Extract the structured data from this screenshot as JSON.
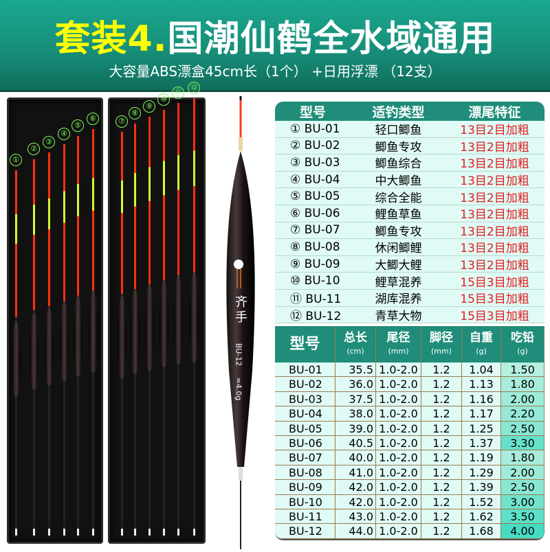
{
  "header": {
    "title_prefix": "套装4.",
    "title_main": "国潮仙鹤全水域通用",
    "subtitle": "大容量ABS漂盒45cm长（1个） +日用浮漂 （12支）"
  },
  "box": {
    "labels": [
      "①",
      "②",
      "③",
      "④",
      "⑤",
      "⑥",
      "⑦",
      "⑧",
      "⑨",
      "⑩",
      "⑪",
      "⑫"
    ]
  },
  "float": {
    "logo": "齐手",
    "model": "BU-12",
    "weight": "≈4.0g"
  },
  "colors": {
    "header": "#1aa88f",
    "title_accent": "#ffff00",
    "tail_feature": "#e02020",
    "table_header": "#1f8d79"
  },
  "table1": {
    "headers": [
      "型号",
      "适钓类型",
      "漂尾特征"
    ],
    "rows": [
      [
        "① BU-01",
        "轻口鲫鱼",
        "13目2目加粗"
      ],
      [
        "② BU-02",
        "鲫鱼专攻",
        "13目2目加粗"
      ],
      [
        "③ BU-03",
        "鲫鱼综合",
        "13目2目加粗"
      ],
      [
        "④ BU-04",
        "中大鲫鱼",
        "13目2目加粗"
      ],
      [
        "⑤ BU-05",
        "综合全能",
        "13目2目加粗"
      ],
      [
        "⑥ BU-06",
        "鲤鱼草鱼",
        "13目2目加粗"
      ],
      [
        "⑦ BU-07",
        "鲫鱼专攻",
        "13目2目加粗"
      ],
      [
        "⑧ BU-08",
        "休闲鲫鲤",
        "13目2目加粗"
      ],
      [
        "⑨ BU-09",
        "大鲫大鲤",
        "13目2目加粗"
      ],
      [
        "⑩ BU-10",
        "鲤草混养",
        "15目3目加粗"
      ],
      [
        "⑪ BU-11",
        "湖库混养",
        "15目3目加粗"
      ],
      [
        "⑫ BU-12",
        "青草大物",
        "15目3目加粗"
      ]
    ]
  },
  "table2": {
    "headers": [
      {
        "label": "型号",
        "unit": ""
      },
      {
        "label": "总长",
        "unit": "(cm)"
      },
      {
        "label": "尾径",
        "unit": "(mm)"
      },
      {
        "label": "脚径",
        "unit": "(mm)"
      },
      {
        "label": "自重",
        "unit": "(g)"
      },
      {
        "label": "吃铅",
        "unit": "(g)"
      }
    ],
    "rows": [
      [
        "BU-01",
        "35.5",
        "1.0-2.0",
        "1.2",
        "1.04",
        "1.50"
      ],
      [
        "BU-02",
        "36.0",
        "1.0-2.0",
        "1.2",
        "1.13",
        "1.80"
      ],
      [
        "BU-03",
        "37.5",
        "1.0-2.0",
        "1.2",
        "1.16",
        "2.00"
      ],
      [
        "BU-04",
        "38.0",
        "1.0-2.0",
        "1.2",
        "1.17",
        "2.20"
      ],
      [
        "BU-05",
        "39.0",
        "1.0-2.0",
        "1.2",
        "1.25",
        "2.50"
      ],
      [
        "BU-06",
        "40.5",
        "1.0-2.0",
        "1.2",
        "1.37",
        "3.30"
      ],
      [
        "BU-07",
        "40.0",
        "1.0-2.0",
        "1.2",
        "1.19",
        "1.80"
      ],
      [
        "BU-08",
        "41.0",
        "1.0-2.0",
        "1.2",
        "1.29",
        "2.00"
      ],
      [
        "BU-09",
        "42.0",
        "1.0-2.0",
        "1.2",
        "1.39",
        "2.50"
      ],
      [
        "BU-10",
        "42.0",
        "1.0-2.0",
        "1.2",
        "1.52",
        "3.00"
      ],
      [
        "BU-11",
        "43.0",
        "1.0-2.0",
        "1.2",
        "1.62",
        "3.50"
      ],
      [
        "BU-12",
        "44.0",
        "1.0-2.0",
        "1.2",
        "1.68",
        "4.00"
      ]
    ]
  }
}
